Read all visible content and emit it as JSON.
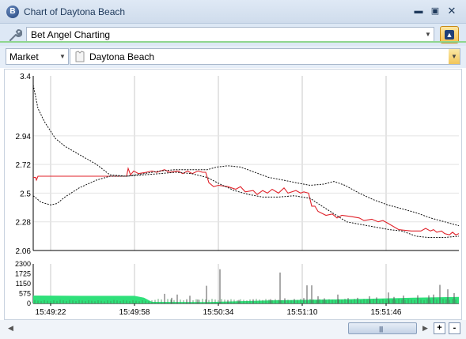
{
  "window": {
    "title": "Chart of Daytona Beach",
    "app_icon_letter": "B"
  },
  "toolbar": {
    "tool_selector_value": "Bet Angel Charting"
  },
  "selectors": {
    "market_type": "Market",
    "event_name": "Daytona Beach"
  },
  "colors": {
    "price_line": "#e0222a",
    "bound_line": "#111111",
    "volume_fill": "#2fe07a",
    "volume_bar": "#555555",
    "grid": "#c8c8c8"
  },
  "chart_data": {
    "type": "line",
    "price_panel": {
      "y_ticks": [
        "3.4",
        "2.94",
        "2.72",
        "2.5",
        "2.28",
        "2.06"
      ],
      "y_tick_values": [
        3.4,
        2.94,
        2.72,
        2.5,
        2.28,
        2.06
      ],
      "ylim": [
        2.06,
        3.4
      ],
      "series": [
        {
          "style": "solid",
          "color": "#e0222a",
          "points": [
            [
              0,
              2.62
            ],
            [
              3,
              2.62
            ],
            [
              4,
              2.6
            ],
            [
              6,
              2.63
            ],
            [
              10,
              2.63
            ],
            [
              22,
              2.63
            ],
            [
              38,
              2.63
            ],
            [
              82,
              2.63
            ],
            [
              118,
              2.63
            ],
            [
              120,
              2.69
            ],
            [
              123,
              2.64
            ],
            [
              127,
              2.67
            ],
            [
              133,
              2.65
            ],
            [
              143,
              2.66
            ],
            [
              150,
              2.67
            ],
            [
              156,
              2.66
            ],
            [
              166,
              2.68
            ],
            [
              172,
              2.66
            ],
            [
              183,
              2.67
            ],
            [
              189,
              2.65
            ],
            [
              195,
              2.67
            ],
            [
              201,
              2.65
            ],
            [
              208,
              2.67
            ],
            [
              214,
              2.66
            ],
            [
              218,
              2.66
            ],
            [
              222,
              2.58
            ],
            [
              228,
              2.55
            ],
            [
              234,
              2.56
            ],
            [
              246,
              2.55
            ],
            [
              256,
              2.53
            ],
            [
              262,
              2.55
            ],
            [
              268,
              2.51
            ],
            [
              278,
              2.52
            ],
            [
              283,
              2.49
            ],
            [
              290,
              2.52
            ],
            [
              296,
              2.5
            ],
            [
              302,
              2.53
            ],
            [
              310,
              2.5
            ],
            [
              317,
              2.54
            ],
            [
              322,
              2.5
            ],
            [
              332,
              2.52
            ],
            [
              338,
              2.5
            ],
            [
              342,
              2.51
            ],
            [
              348,
              2.5
            ],
            [
              352,
              2.4
            ],
            [
              356,
              2.4
            ],
            [
              360,
              2.36
            ],
            [
              370,
              2.33
            ],
            [
              378,
              2.34
            ],
            [
              384,
              2.31
            ],
            [
              390,
              2.33
            ],
            [
              402,
              2.32
            ],
            [
              412,
              2.31
            ],
            [
              418,
              2.29
            ],
            [
              428,
              2.3
            ],
            [
              436,
              2.28
            ],
            [
              442,
              2.29
            ],
            [
              448,
              2.27
            ],
            [
              462,
              2.22
            ],
            [
              478,
              2.21
            ],
            [
              490,
              2.21
            ],
            [
              496,
              2.23
            ],
            [
              502,
              2.21
            ],
            [
              506,
              2.22
            ],
            [
              510,
              2.2
            ],
            [
              516,
              2.21
            ],
            [
              520,
              2.19
            ],
            [
              526,
              2.18
            ],
            [
              530,
              2.2
            ],
            [
              534,
              2.18
            ],
            [
              538,
              2.19
            ]
          ]
        },
        {
          "style": "dashed",
          "color": "#111111",
          "points": [
            [
              0,
              3.33
            ],
            [
              6,
              3.15
            ],
            [
              14,
              3.05
            ],
            [
              28,
              2.92
            ],
            [
              40,
              2.86
            ],
            [
              60,
              2.79
            ],
            [
              80,
              2.72
            ],
            [
              97,
              2.64
            ],
            [
              118,
              2.63
            ],
            [
              140,
              2.65
            ],
            [
              160,
              2.67
            ],
            [
              180,
              2.68
            ],
            [
              200,
              2.68
            ],
            [
              220,
              2.68
            ],
            [
              232,
              2.7
            ],
            [
              246,
              2.71
            ],
            [
              262,
              2.7
            ],
            [
              280,
              2.66
            ],
            [
              298,
              2.62
            ],
            [
              316,
              2.6
            ],
            [
              332,
              2.58
            ],
            [
              350,
              2.56
            ],
            [
              368,
              2.57
            ],
            [
              380,
              2.59
            ],
            [
              394,
              2.56
            ],
            [
              412,
              2.5
            ],
            [
              430,
              2.45
            ],
            [
              448,
              2.41
            ],
            [
              466,
              2.38
            ],
            [
              484,
              2.35
            ],
            [
              502,
              2.31
            ],
            [
              520,
              2.28
            ],
            [
              538,
              2.25
            ]
          ]
        },
        {
          "style": "dashed",
          "color": "#111111",
          "points": [
            [
              0,
              2.48
            ],
            [
              10,
              2.43
            ],
            [
              22,
              2.41
            ],
            [
              30,
              2.42
            ],
            [
              40,
              2.47
            ],
            [
              58,
              2.54
            ],
            [
              80,
              2.6
            ],
            [
              97,
              2.63
            ],
            [
              118,
              2.63
            ],
            [
              140,
              2.64
            ],
            [
              160,
              2.65
            ],
            [
              180,
              2.66
            ],
            [
              200,
              2.65
            ],
            [
              220,
              2.62
            ],
            [
              236,
              2.57
            ],
            [
              254,
              2.52
            ],
            [
              272,
              2.49
            ],
            [
              290,
              2.47
            ],
            [
              310,
              2.47
            ],
            [
              330,
              2.48
            ],
            [
              350,
              2.46
            ],
            [
              360,
              2.42
            ],
            [
              378,
              2.35
            ],
            [
              396,
              2.28
            ],
            [
              414,
              2.26
            ],
            [
              432,
              2.24
            ],
            [
              450,
              2.22
            ],
            [
              466,
              2.21
            ],
            [
              484,
              2.17
            ],
            [
              498,
              2.16
            ],
            [
              520,
              2.16
            ],
            [
              538,
              2.17
            ]
          ]
        }
      ]
    },
    "volume_panel": {
      "y_ticks": [
        "2300",
        "1725",
        "1150",
        "575",
        "0"
      ],
      "y_tick_values": [
        2300,
        1725,
        1150,
        575,
        0
      ],
      "ylim": [
        0,
        2300
      ],
      "baseline_band": [
        [
          0,
          460
        ],
        [
          60,
          440
        ],
        [
          128,
          440
        ],
        [
          140,
          330
        ],
        [
          150,
          90
        ],
        [
          220,
          80
        ],
        [
          300,
          180
        ],
        [
          400,
          250
        ],
        [
          480,
          330
        ],
        [
          538,
          380
        ]
      ],
      "spikes": [
        [
          166,
          560
        ],
        [
          175,
          330
        ],
        [
          182,
          520
        ],
        [
          194,
          230
        ],
        [
          198,
          450
        ],
        [
          208,
          230
        ],
        [
          219,
          1030
        ],
        [
          236,
          1990
        ],
        [
          246,
          200
        ],
        [
          260,
          200
        ],
        [
          278,
          240
        ],
        [
          300,
          250
        ],
        [
          312,
          1800
        ],
        [
          318,
          300
        ],
        [
          330,
          260
        ],
        [
          342,
          310
        ],
        [
          346,
          1050
        ],
        [
          352,
          1050
        ],
        [
          360,
          420
        ],
        [
          368,
          300
        ],
        [
          385,
          520
        ],
        [
          398,
          310
        ],
        [
          410,
          330
        ],
        [
          425,
          420
        ],
        [
          434,
          350
        ],
        [
          449,
          640
        ],
        [
          456,
          380
        ],
        [
          468,
          460
        ],
        [
          486,
          480
        ],
        [
          500,
          470
        ],
        [
          506,
          520
        ],
        [
          514,
          1080
        ],
        [
          524,
          820
        ],
        [
          532,
          600
        ]
      ]
    },
    "x_ticks": [
      "15:49:22",
      "15:49:58",
      "15:50:34",
      "15:51:10",
      "15:51:46"
    ],
    "x_tick_values": [
      22,
      128,
      234,
      340,
      446
    ],
    "xlim": [
      0,
      538
    ],
    "grid": true,
    "legend": "none"
  },
  "scrollbar": {
    "zoom_in_label": "+",
    "zoom_out_label": "-"
  }
}
